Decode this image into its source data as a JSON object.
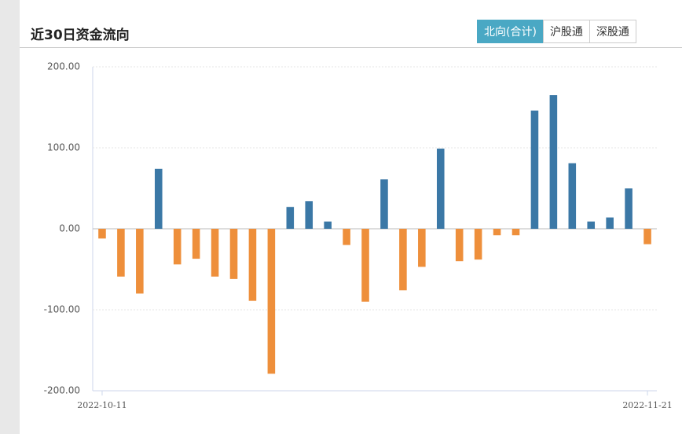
{
  "chart_data": {
    "type": "bar",
    "title": "近30日资金流向",
    "buttons": [
      "北向(合计)",
      "沪股通",
      "深股通"
    ],
    "categories": [
      "2022-10-11",
      null,
      null,
      null,
      null,
      null,
      null,
      null,
      null,
      null,
      null,
      null,
      null,
      null,
      null,
      null,
      null,
      null,
      null,
      null,
      null,
      null,
      null,
      null,
      null,
      null,
      null,
      null,
      null,
      "2022-11-21"
    ],
    "values": [
      -12,
      -59,
      -80,
      74,
      -44,
      -37,
      -59,
      -62,
      -89,
      -179,
      27,
      34,
      9,
      -20,
      -90,
      61,
      -76,
      -47,
      99,
      -40,
      -38,
      -8,
      -8,
      146,
      165,
      81,
      9,
      14,
      50,
      -19
    ],
    "positive_color": "#3b78a6",
    "negative_color": "#ee8f3b",
    "ylim": [
      -200,
      200
    ],
    "yticks": [
      {
        "value": -200,
        "label": "-200.00"
      },
      {
        "value": -100,
        "label": "-100.00"
      },
      {
        "value": 0,
        "label": "0.00"
      },
      {
        "value": 100,
        "label": "100.00"
      },
      {
        "value": 200,
        "label": "200.00"
      }
    ],
    "grid": true
  }
}
